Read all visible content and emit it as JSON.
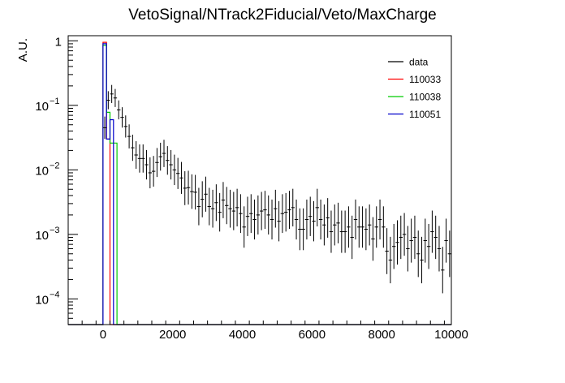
{
  "chart_data": {
    "type": "line",
    "title": "VetoSignal/NTrack2Fiducial/Veto/MaxCharge",
    "xlabel": "",
    "ylabel": "A.U.",
    "xlim": [
      -1000,
      10000
    ],
    "ylim": [
      4e-05,
      1.2
    ],
    "ylog": true,
    "grid": false,
    "legend_position": "top-right",
    "x_ticks": [
      "0",
      "2000",
      "4000",
      "6000",
      "8000",
      "10000"
    ],
    "x_tick_values": [
      0,
      2000,
      4000,
      6000,
      8000,
      10000
    ],
    "y_ticks": [
      {
        "base": "1",
        "exp": "",
        "value": 1
      },
      {
        "base": "10",
        "exp": "−1",
        "value": 0.1
      },
      {
        "base": "10",
        "exp": "−2",
        "value": 0.01
      },
      {
        "base": "10",
        "exp": "−3",
        "value": 0.001
      },
      {
        "base": "10",
        "exp": "−4",
        "value": 0.0001
      }
    ],
    "series": [
      {
        "name": "data",
        "color": "#000000",
        "style": "points",
        "points": [
          [
            50,
            0.045
          ],
          [
            150,
            0.12
          ],
          [
            250,
            0.15
          ],
          [
            350,
            0.13
          ],
          [
            450,
            0.085
          ],
          [
            550,
            0.065
          ],
          [
            650,
            0.047
          ],
          [
            750,
            0.033
          ],
          [
            850,
            0.022
          ],
          [
            950,
            0.017
          ],
          [
            1050,
            0.015
          ],
          [
            1150,
            0.015
          ],
          [
            1250,
            0.012
          ],
          [
            1350,
            0.009
          ],
          [
            1450,
            0.0095
          ],
          [
            1550,
            0.013
          ],
          [
            1650,
            0.016
          ],
          [
            1750,
            0.018
          ],
          [
            1850,
            0.014
          ],
          [
            1950,
            0.012
          ],
          [
            2050,
            0.01
          ],
          [
            2150,
            0.0088
          ],
          [
            2250,
            0.0075
          ],
          [
            2350,
            0.0052
          ],
          [
            2450,
            0.0053
          ],
          [
            2550,
            0.0046
          ],
          [
            2650,
            0.0045
          ],
          [
            2750,
            0.0027
          ],
          [
            2850,
            0.0035
          ],
          [
            2950,
            0.0042
          ],
          [
            3050,
            0.0027
          ],
          [
            3150,
            0.0025
          ],
          [
            3250,
            0.0031
          ],
          [
            3350,
            0.0022
          ],
          [
            3450,
            0.0034
          ],
          [
            3550,
            0.0028
          ],
          [
            3650,
            0.0025
          ],
          [
            3750,
            0.0023
          ],
          [
            3850,
            0.0026
          ],
          [
            3950,
            0.0021
          ],
          [
            4050,
            0.0013
          ],
          [
            4150,
            0.0019
          ],
          [
            4250,
            0.0021
          ],
          [
            4350,
            0.0017
          ],
          [
            4450,
            0.002
          ],
          [
            4550,
            0.0023
          ],
          [
            4650,
            0.0024
          ],
          [
            4750,
            0.002
          ],
          [
            4850,
            0.0017
          ],
          [
            4950,
            0.0025
          ],
          [
            5050,
            0.0016
          ],
          [
            5150,
            0.0021
          ],
          [
            5250,
            0.0022
          ],
          [
            5350,
            0.0024
          ],
          [
            5450,
            0.0026
          ],
          [
            5550,
            0.0017
          ],
          [
            5650,
            0.0012
          ],
          [
            5750,
            0.0012
          ],
          [
            5850,
            0.0017
          ],
          [
            5950,
            0.0019
          ],
          [
            6050,
            0.0016
          ],
          [
            6150,
            0.0026
          ],
          [
            6250,
            0.0017
          ],
          [
            6350,
            0.0014
          ],
          [
            6450,
            0.0018
          ],
          [
            6550,
            0.0011
          ],
          [
            6650,
            0.0014
          ],
          [
            6750,
            0.0015
          ],
          [
            6850,
            0.0011
          ],
          [
            6950,
            0.0011
          ],
          [
            7050,
            0.0013
          ],
          [
            7150,
            0.0009
          ],
          [
            7250,
            0.0017
          ],
          [
            7350,
            0.0013
          ],
          [
            7450,
            0.0013
          ],
          [
            7550,
            0.0012
          ],
          [
            7650,
            0.0014
          ],
          [
            7750,
            0.00085
          ],
          [
            7850,
            0.0013
          ],
          [
            7950,
            0.0017
          ],
          [
            8050,
            0.0013
          ],
          [
            8150,
            0.00055
          ],
          [
            8250,
            0.0004
          ],
          [
            8350,
            0.00065
          ],
          [
            8450,
            0.00075
          ],
          [
            8550,
            0.0009
          ],
          [
            8650,
            0.001
          ],
          [
            8750,
            0.0006
          ],
          [
            8850,
            0.0008
          ],
          [
            8950,
            0.0009
          ],
          [
            9050,
            0.0005
          ],
          [
            9150,
            0.0004
          ],
          [
            9250,
            0.0008
          ],
          [
            9350,
            0.00065
          ],
          [
            9450,
            0.0011
          ],
          [
            9550,
            0.0009
          ],
          [
            9650,
            0.0006
          ],
          [
            9750,
            0.00028
          ],
          [
            9850,
            0.0008
          ],
          [
            9950,
            0.0005
          ]
        ]
      },
      {
        "name": "110033",
        "color": "#ff0000",
        "style": "hist",
        "bins": [
          [
            -1000,
            0,
            0
          ],
          [
            0,
            100,
            0.95
          ],
          [
            100,
            200,
            0.03
          ],
          [
            200,
            10000,
            0
          ]
        ]
      },
      {
        "name": "110038",
        "color": "#00cc00",
        "style": "hist",
        "bins": [
          [
            -1000,
            0,
            0
          ],
          [
            0,
            100,
            0.85
          ],
          [
            100,
            200,
            0.078
          ],
          [
            200,
            400,
            0.026
          ],
          [
            400,
            10000,
            0
          ]
        ]
      },
      {
        "name": "110051",
        "color": "#0000cc",
        "style": "hist",
        "bins": [
          [
            -1000,
            0,
            0
          ],
          [
            0,
            100,
            0.9
          ],
          [
            100,
            200,
            0.03
          ],
          [
            200,
            300,
            0.06
          ],
          [
            300,
            10000,
            0
          ]
        ]
      }
    ]
  }
}
